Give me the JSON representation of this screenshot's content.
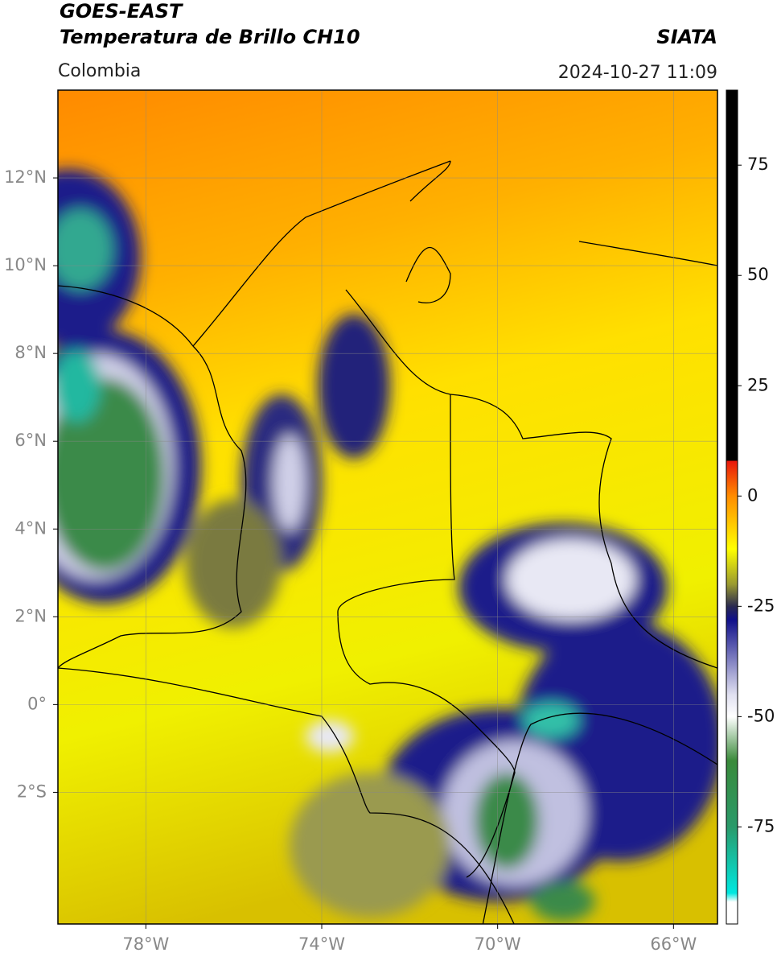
{
  "header": {
    "title": "GOES-EAST",
    "subtitle": "Temperatura de Brillo CH10",
    "source": "SIATA",
    "region": "Colombia",
    "datetime": "2024-10-27 11:09"
  },
  "map": {
    "xlim": [
      -80,
      -65
    ],
    "ylim": [
      -5,
      14
    ],
    "xticks": [
      {
        "value": -78,
        "label": "78°W"
      },
      {
        "value": -74,
        "label": "74°W"
      },
      {
        "value": -70,
        "label": "70°W"
      },
      {
        "value": -66,
        "label": "66°W"
      }
    ],
    "yticks": [
      {
        "value": 12,
        "label": "12°N"
      },
      {
        "value": 10,
        "label": "10°N"
      },
      {
        "value": 8,
        "label": "8°N"
      },
      {
        "value": 6,
        "label": "6°N"
      },
      {
        "value": 4,
        "label": "4°N"
      },
      {
        "value": 2,
        "label": "2°N"
      },
      {
        "value": 0,
        "label": "0°"
      },
      {
        "value": -2,
        "label": "2°S"
      }
    ],
    "grid": true
  },
  "colorbar": {
    "lim": [
      -97,
      92
    ],
    "ticks": [
      75,
      50,
      25,
      0,
      -25,
      -50,
      -75
    ],
    "stops": [
      {
        "value": 92,
        "color": "#000000"
      },
      {
        "value": 8,
        "color": "#000000"
      },
      {
        "value": 8,
        "color": "#e8160c"
      },
      {
        "value": 0,
        "color": "#ff8c00"
      },
      {
        "value": -12,
        "color": "#ffff00"
      },
      {
        "value": -20,
        "color": "#9a9a30"
      },
      {
        "value": -25,
        "color": "#2a2a50"
      },
      {
        "value": -28,
        "color": "#10108a"
      },
      {
        "value": -45,
        "color": "#e0e0f0"
      },
      {
        "value": -50,
        "color": "#ffffff"
      },
      {
        "value": -60,
        "color": "#3a8a3a"
      },
      {
        "value": -75,
        "color": "#2a9a6a"
      },
      {
        "value": -90,
        "color": "#00e8e0"
      },
      {
        "value": -92,
        "color": "#ffffff"
      },
      {
        "value": -97,
        "color": "#ffffff"
      }
    ]
  }
}
